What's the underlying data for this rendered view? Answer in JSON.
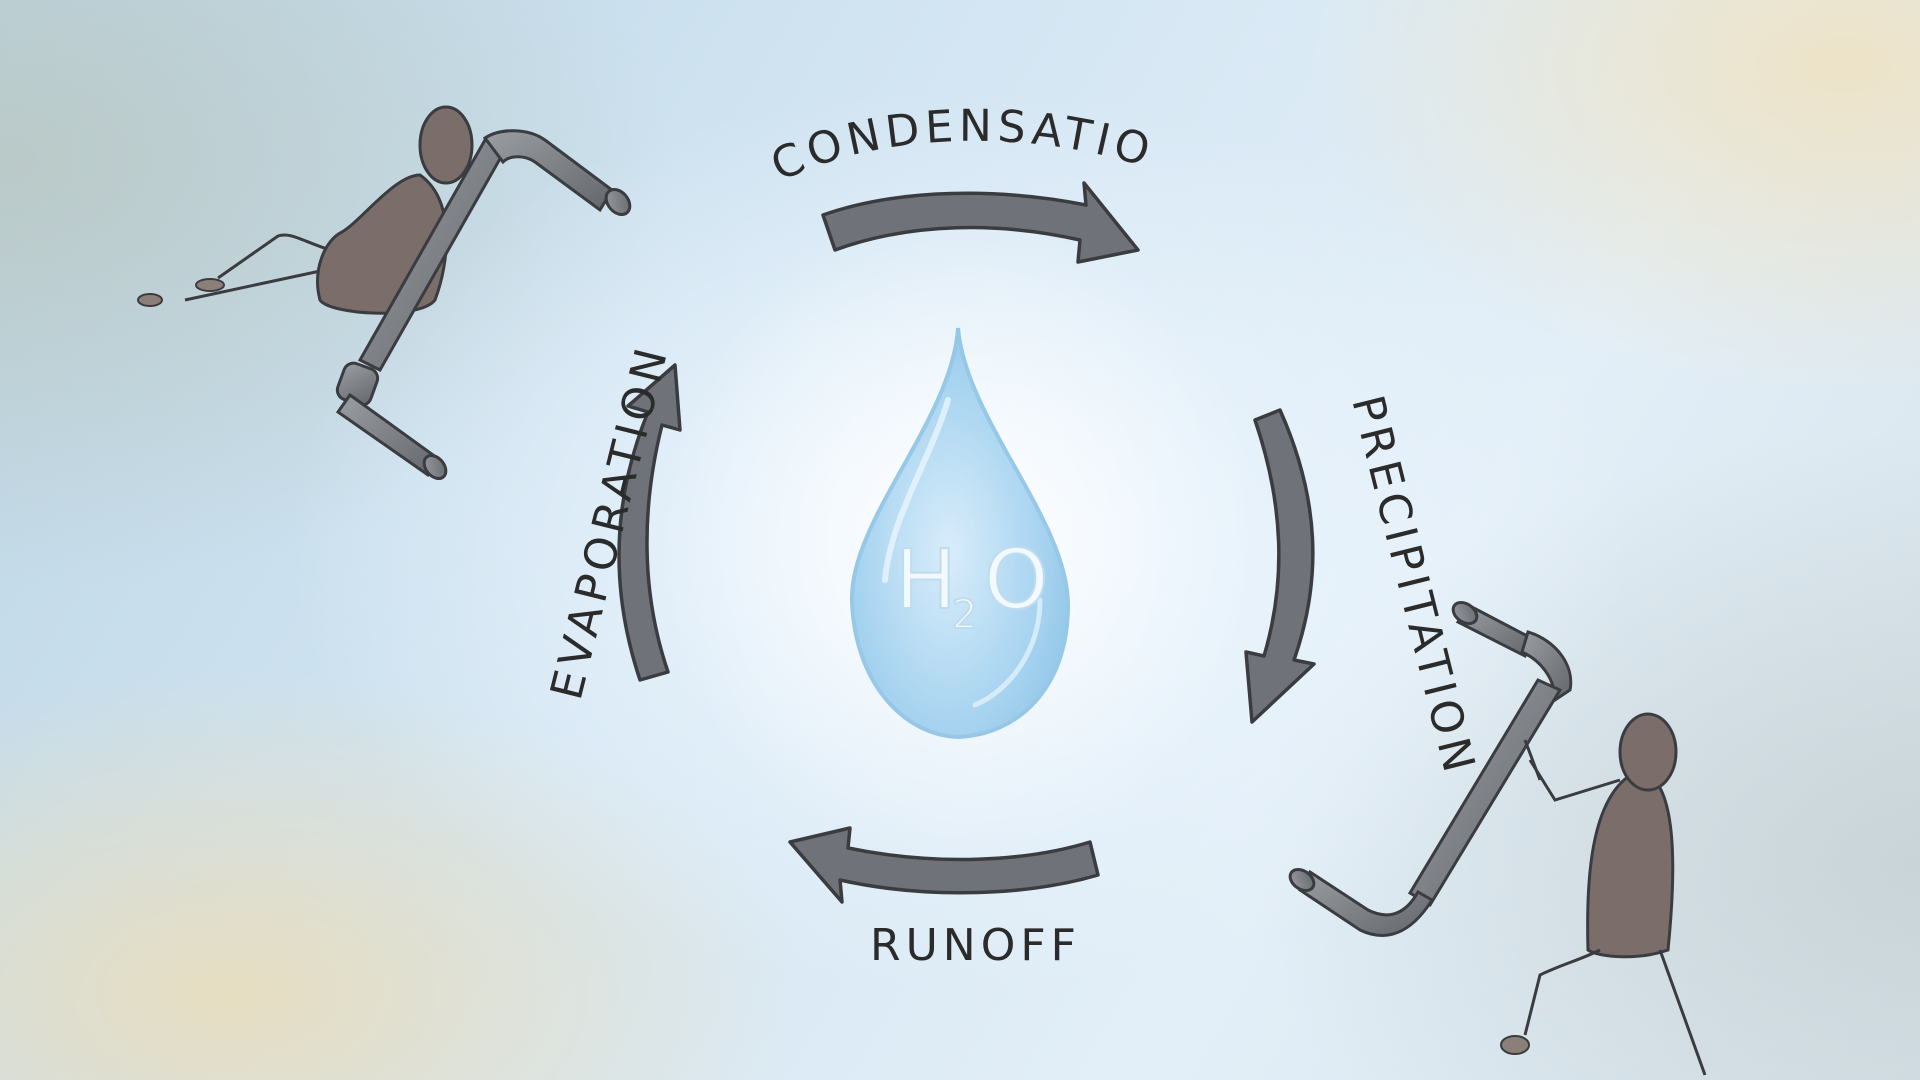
{
  "diagram": {
    "center": {
      "main": "H",
      "sub": "2",
      "tail": "O"
    },
    "stages": {
      "condensation": "CONDENSATION",
      "precipitation": "PRECIPITATION",
      "runoff": "RUNOFF",
      "evaporation": "EVAPORATION"
    }
  },
  "colors": {
    "arrow_fill": "#6f7379",
    "arrow_stroke": "#3a3c40",
    "figure_fill": "#7b6e6a",
    "pipe_fill": "#7d8085",
    "ink": "#2b2b2b",
    "drop_fill": "#a8d4f0"
  }
}
